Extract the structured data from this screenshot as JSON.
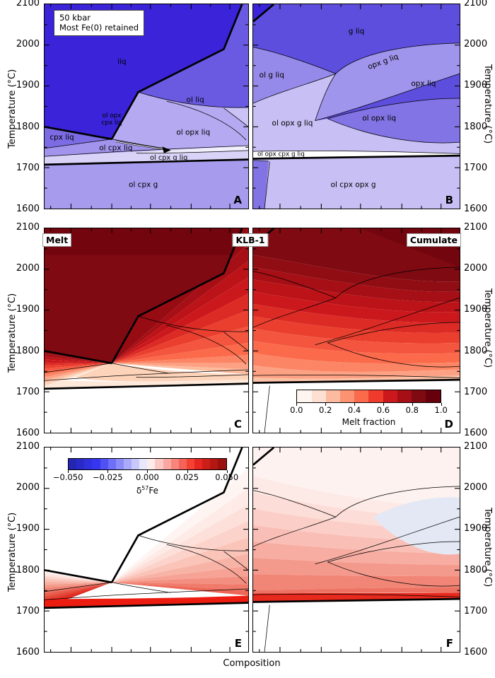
{
  "axes": {
    "ylabel": "Temperature (°C)",
    "xlabel": "Composition",
    "y_ticks": [
      "2100",
      "2000",
      "1900",
      "1800",
      "1700",
      "1600"
    ]
  },
  "annotation": {
    "text": "50 kbar\nMost Fe(0) retained"
  },
  "column_titles": {
    "left": "Melt",
    "center": "KLB-1",
    "right": "Cumulate"
  },
  "panels": {
    "A": {
      "letter": "A",
      "labels": {
        "liq": "liq",
        "ol_liq": "ol liq",
        "ol_opx_cpx_liq": "ol opx\ncpx liq",
        "cpx_liq": "cpx liq",
        "ol_cpx_liq": "ol cpx liq",
        "ol_opx_liq": "ol opx liq",
        "ol_cpx_g_liq": "ol cpx g liq",
        "ol_cpx_g": "ol cpx g"
      }
    },
    "B": {
      "letter": "B",
      "labels": {
        "g_liq": "g liq",
        "ol_g_liq": "ol g liq",
        "opx_g_liq": "opx g liq",
        "opx_liq": "opx liq",
        "ol_opx_g_liq": "ol opx g liq",
        "ol_opx_liq": "ol opx liq",
        "ol_opx_cpx_g_liq": "ol opx cpx g liq",
        "ol_cpx_opx_g": "ol cpx opx g"
      }
    },
    "C": {
      "letter": "C"
    },
    "D": {
      "letter": "D"
    },
    "E": {
      "letter": "E"
    },
    "F": {
      "letter": "F"
    }
  },
  "colorbars": {
    "melt": {
      "label": "Melt fraction",
      "ticks": [
        "0.0",
        "0.2",
        "0.4",
        "0.6",
        "0.8",
        "1.0"
      ],
      "colors": [
        "#fff5f0",
        "#fee0d2",
        "#fcbba1",
        "#fc9272",
        "#fb6a4a",
        "#ef3b2c",
        "#cb181d",
        "#a50f15",
        "#7f0a12",
        "#67000d"
      ]
    },
    "fe": {
      "label_prefix": "δ",
      "label_sup": "57",
      "label_suffix": "Fe",
      "ticks": [
        "−0.050",
        "−0.025",
        "0.000",
        "0.025",
        "0.050"
      ],
      "colors": [
        "#2525b4",
        "#2a2ac8",
        "#3030dc",
        "#3636f0",
        "#5050f4",
        "#6e6ef6",
        "#8c8cf8",
        "#aaaafa",
        "#c8c8fc",
        "#e8e8fd",
        "#fdecea",
        "#fbc9c4",
        "#f9a7a0",
        "#f7857c",
        "#f56358",
        "#f34134",
        "#e62620",
        "#cc1d19",
        "#b31713",
        "#99100d"
      ]
    }
  },
  "palette": {
    "liq_deep_blue": "#3a23d9",
    "mid_blue": "#5d4ede",
    "ol_liq_blue": "#6a5ae1",
    "light_lavender": "#c8bff4",
    "solidus_red": "#ed1c11",
    "dark_red": "#7f0a12",
    "pale_blue_patch": "#e3e8f4"
  },
  "chart_data": {
    "type": "heatmap",
    "title": "50 kbar phase equilibria, melt fraction and δ57Fe (Most Fe(0) retained)",
    "x": {
      "label": "Composition",
      "note": "unlabeled composition axis from Melt end-member (left column) through KLB-1 (center) to Cumulate end-member (right column)"
    },
    "y": {
      "label": "Temperature (°C)",
      "min": 1600,
      "max": 2100,
      "major_ticks": [
        1600,
        1700,
        1800,
        1900,
        2000,
        2100
      ]
    },
    "conditions": [
      "50 kbar",
      "Most Fe(0) retained"
    ],
    "columns": [
      "Melt",
      "KLB-1",
      "Cumulate"
    ],
    "panels": [
      {
        "id": "A",
        "content": "phase assemblage map, melt side",
        "regions": [
          "liq",
          "ol liq",
          "ol opx cpx liq",
          "cpx liq",
          "ol cpx liq",
          "ol opx liq",
          "ol cpx g liq",
          "ol cpx g"
        ],
        "invariant_point": {
          "x_fraction": 0.33,
          "temperature_c": 1770
        },
        "solidus_temperature_c": 1710,
        "liquidus_reaches_2100C_at_x_fraction": 0.97
      },
      {
        "id": "B",
        "content": "phase assemblage map, cumulate side",
        "regions": [
          "liq",
          "g liq",
          "ol g liq",
          "opx g liq",
          "opx liq",
          "ol opx g liq",
          "ol opx liq",
          "ol opx cpx g liq",
          "ol cpx opx g"
        ],
        "solidus_temperature_c": 1725
      },
      {
        "id": "C",
        "content": "melt fraction contour fill, melt side",
        "value_range": [
          0.0,
          1.0
        ],
        "pattern": "melt fraction = 1.0 (dark red) above liquidus, decreasing to 0 (white) at solidus ~1710 °C"
      },
      {
        "id": "D",
        "content": "melt fraction contour fill, cumulate side",
        "value_range": [
          0.0,
          1.0
        ],
        "pattern": "near 1.0 at top (2100 °C) grading to 0 at solidus ~1725 °C; inset colorbar"
      },
      {
        "id": "E",
        "content": "δ57Fe contour fill, melt side",
        "value_range": [
          -0.05,
          0.05
        ],
        "pattern": "δ57Fe ≈ 0 above liquidus, increasingly positive toward solidus; maximum (≈+0.05) band just above solidus; inset colorbar"
      },
      {
        "id": "F",
        "content": "δ57Fe contour fill, cumulate side",
        "value_range": [
          -0.05,
          0.05
        ],
        "pattern": "slightly positive overall, deepening toward lower left; small negative (pale blue) lens at center-right; strongly positive band at solidus"
      }
    ],
    "colorbars": [
      {
        "label": "Melt fraction",
        "min": 0.0,
        "max": 1.0,
        "ticks": [
          0.0,
          0.2,
          0.4,
          0.6,
          0.8,
          1.0
        ],
        "colormap": "Reds, 10 discrete steps",
        "location": "inset bottom of panel D"
      },
      {
        "label": "δ57Fe",
        "min": -0.05,
        "max": 0.05,
        "ticks": [
          -0.05,
          -0.025,
          0.0,
          0.025,
          0.05
        ],
        "colormap": "blue-white-red diverging, 20 discrete steps",
        "location": "inset top of panel E"
      }
    ],
    "grid": false,
    "tick_direction": "in"
  }
}
